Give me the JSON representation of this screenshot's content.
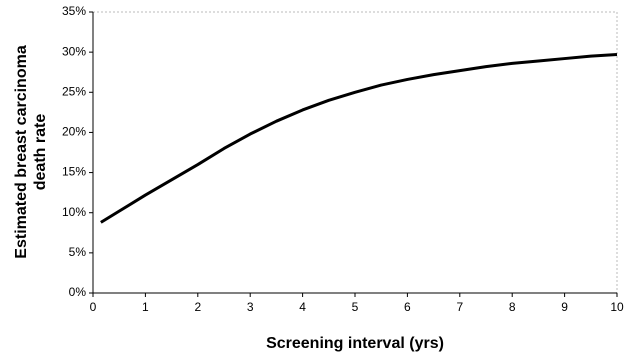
{
  "chart_data": {
    "type": "line",
    "x_label": "Screening interval (yrs)",
    "y_label": [
      "Estimated breast carcinoma",
      "death rate"
    ],
    "x": [
      0.15,
      0.5,
      1,
      1.5,
      2,
      2.5,
      3,
      3.5,
      4,
      4.5,
      5,
      5.5,
      6,
      6.5,
      7,
      7.5,
      8,
      8.5,
      9,
      9.5,
      10
    ],
    "series": [
      {
        "color": "#000000",
        "values": [
          8.8,
          10.2,
          12.2,
          14.1,
          16.0,
          18.0,
          19.8,
          21.4,
          22.8,
          24.0,
          25.0,
          25.9,
          26.6,
          27.2,
          27.7,
          28.2,
          28.6,
          28.9,
          29.2,
          29.5,
          29.7
        ]
      }
    ],
    "xlim": [
      0,
      10
    ],
    "xticks": [
      0,
      1,
      2,
      3,
      4,
      5,
      6,
      7,
      8,
      9,
      10
    ],
    "ylim": [
      0,
      35
    ],
    "yticks": [
      {
        "value": 0,
        "label": "0%"
      },
      {
        "value": 5,
        "label": "5%"
      },
      {
        "value": 10,
        "label": "10%"
      },
      {
        "value": 15,
        "label": "15%"
      },
      {
        "value": 20,
        "label": "20%"
      },
      {
        "value": 25,
        "label": "25%"
      },
      {
        "value": 30,
        "label": "30%"
      },
      {
        "value": 35,
        "label": "35%"
      }
    ]
  }
}
